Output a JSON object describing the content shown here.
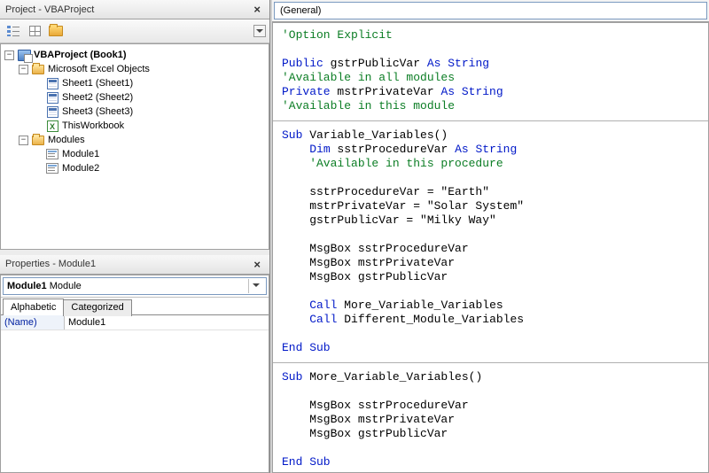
{
  "projectPanel": {
    "title": "Project - VBAProject",
    "tree": {
      "root": {
        "label": "VBAProject (Book1)",
        "expander": "−"
      },
      "excelObjects": {
        "label": "Microsoft Excel Objects",
        "expander": "−"
      },
      "sheets": [
        {
          "label": "Sheet1 (Sheet1)"
        },
        {
          "label": "Sheet2 (Sheet2)"
        },
        {
          "label": "Sheet3 (Sheet3)"
        }
      ],
      "workbook": {
        "label": "ThisWorkbook"
      },
      "modulesFolder": {
        "label": "Modules",
        "expander": "−"
      },
      "modules": [
        {
          "label": "Module1"
        },
        {
          "label": "Module2"
        }
      ]
    }
  },
  "propertiesPanel": {
    "title": "Properties - Module1",
    "objectName": "Module1",
    "objectType": "Module",
    "tabs": {
      "alphabetic": "Alphabetic",
      "categorized": "Categorized"
    },
    "rows": [
      {
        "key": "(Name)",
        "value": "Module1"
      }
    ]
  },
  "codePanel": {
    "scopeDropdown": "(General)",
    "colors": {
      "keyword": "#0018c8",
      "comment": "#0b7d24",
      "text": "#000000",
      "background": "#ffffff"
    },
    "fontFamily": "Courier New",
    "fontSizePt": 10,
    "lines": [
      {
        "t": "comment",
        "s": "'Option Explicit"
      },
      {
        "t": "blank"
      },
      {
        "t": "mixed",
        "parts": [
          [
            "kw",
            "Public"
          ],
          [
            "t",
            " gstrPublicVar "
          ],
          [
            "kw",
            "As String"
          ]
        ]
      },
      {
        "t": "comment",
        "s": "'Available in all modules"
      },
      {
        "t": "mixed",
        "parts": [
          [
            "kw",
            "Private"
          ],
          [
            "t",
            " mstrPrivateVar "
          ],
          [
            "kw",
            "As String"
          ]
        ]
      },
      {
        "t": "comment",
        "s": "'Available in this module"
      },
      {
        "t": "sep"
      },
      {
        "t": "mixed",
        "parts": [
          [
            "kw",
            "Sub"
          ],
          [
            "t",
            " Variable_Variables()"
          ]
        ]
      },
      {
        "t": "mixed",
        "parts": [
          [
            "t",
            "    "
          ],
          [
            "kw",
            "Dim"
          ],
          [
            "t",
            " sstrProcedureVar "
          ],
          [
            "kw",
            "As String"
          ]
        ]
      },
      {
        "t": "comment",
        "s": "    'Available in this procedure"
      },
      {
        "t": "blank"
      },
      {
        "t": "plain",
        "s": "    sstrProcedureVar = \"Earth\""
      },
      {
        "t": "plain",
        "s": "    mstrPrivateVar = \"Solar System\""
      },
      {
        "t": "plain",
        "s": "    gstrPublicVar = \"Milky Way\""
      },
      {
        "t": "blank"
      },
      {
        "t": "plain",
        "s": "    MsgBox sstrProcedureVar"
      },
      {
        "t": "plain",
        "s": "    MsgBox mstrPrivateVar"
      },
      {
        "t": "plain",
        "s": "    MsgBox gstrPublicVar"
      },
      {
        "t": "blank"
      },
      {
        "t": "mixed",
        "parts": [
          [
            "t",
            "    "
          ],
          [
            "kw",
            "Call"
          ],
          [
            "t",
            " More_Variable_Variables"
          ]
        ]
      },
      {
        "t": "mixed",
        "parts": [
          [
            "t",
            "    "
          ],
          [
            "kw",
            "Call"
          ],
          [
            "t",
            " Different_Module_Variables"
          ]
        ]
      },
      {
        "t": "blank"
      },
      {
        "t": "kw",
        "s": "End Sub"
      },
      {
        "t": "sep"
      },
      {
        "t": "mixed",
        "parts": [
          [
            "kw",
            "Sub"
          ],
          [
            "t",
            " More_Variable_Variables()"
          ]
        ]
      },
      {
        "t": "blank"
      },
      {
        "t": "plain",
        "s": "    MsgBox sstrProcedureVar"
      },
      {
        "t": "plain",
        "s": "    MsgBox mstrPrivateVar"
      },
      {
        "t": "plain",
        "s": "    MsgBox gstrPublicVar"
      },
      {
        "t": "blank"
      },
      {
        "t": "kw",
        "s": "End Sub"
      }
    ]
  }
}
